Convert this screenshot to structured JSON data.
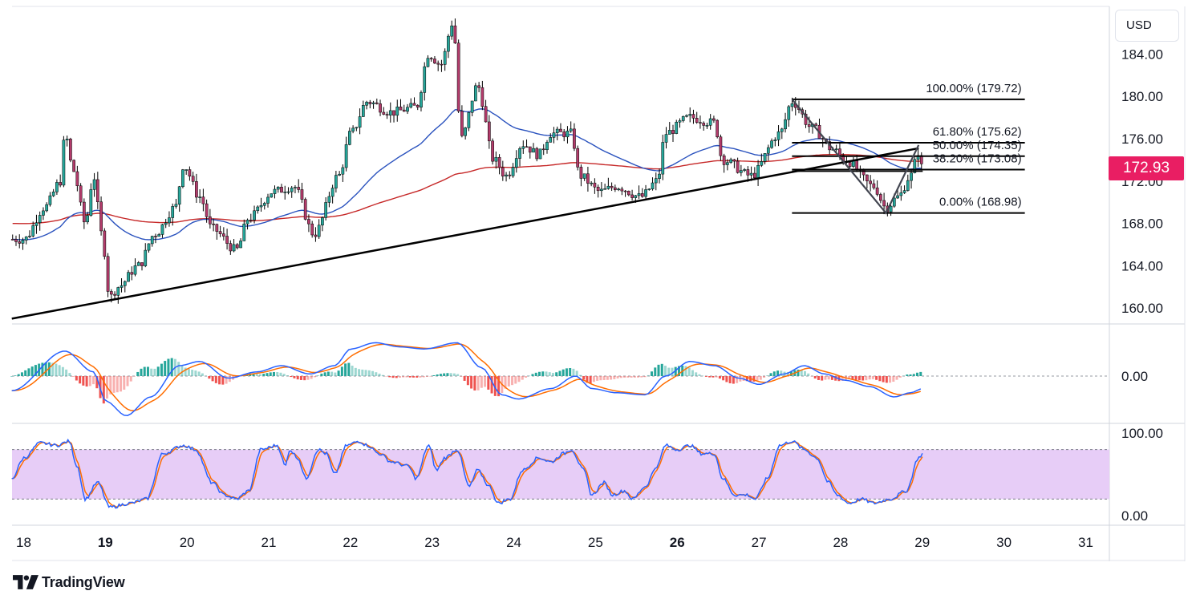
{
  "currency_label": "USD",
  "last_price_badge": "172.93",
  "branding": "TradingView",
  "colors": {
    "up": "#26a69a",
    "down": "#b33b6b",
    "ma_fast": "#2a52be",
    "ma_slow": "#c62828",
    "trendline": "#000000",
    "macd": "#2962ff",
    "signal": "#ff6d00",
    "hist_pos": "#26a69a",
    "hist_neg": "#ef5350",
    "stoch_fill": "#e7cdf7",
    "badge": "#e91e63"
  },
  "chart_data": [
    {
      "type": "candlestick",
      "y_ticks": [
        "184.00",
        "180.00",
        "176.00",
        "172.00",
        "168.00",
        "164.00",
        "160.00"
      ],
      "ylim": [
        158.5,
        188.5
      ],
      "x_ticks": [
        "18",
        "19",
        "20",
        "21",
        "22",
        "23",
        "24",
        "25",
        "26",
        "27",
        "28",
        "29",
        "30",
        "31"
      ],
      "bold_x_ticks": [
        "19",
        "26"
      ],
      "xlim": [
        17.85,
        32.25
      ],
      "ohlc_anchors": [
        [
          18.0,
          166.5
        ],
        [
          18.25,
          169.5
        ],
        [
          18.45,
          172.0
        ],
        [
          18.5,
          176.5
        ],
        [
          18.6,
          173.0
        ],
        [
          18.75,
          168.0
        ],
        [
          18.85,
          172.5
        ],
        [
          18.95,
          167.0
        ],
        [
          19.05,
          161.0
        ],
        [
          19.15,
          162.0
        ],
        [
          19.4,
          164.0
        ],
        [
          19.6,
          167.0
        ],
        [
          19.85,
          169.5
        ],
        [
          19.95,
          173.5
        ],
        [
          20.15,
          170.5
        ],
        [
          20.3,
          167.5
        ],
        [
          20.6,
          165.5
        ],
        [
          20.75,
          168.5
        ],
        [
          21.05,
          171.0
        ],
        [
          21.3,
          171.5
        ],
        [
          21.55,
          167.0
        ],
        [
          21.85,
          172.5
        ],
        [
          22.0,
          176.5
        ],
        [
          22.2,
          179.5
        ],
        [
          22.5,
          178.5
        ],
        [
          22.8,
          179.0
        ],
        [
          22.95,
          184.0
        ],
        [
          23.1,
          183.0
        ],
        [
          23.25,
          187.0
        ],
        [
          23.35,
          176.0
        ],
        [
          23.55,
          181.0
        ],
        [
          23.75,
          174.0
        ],
        [
          23.9,
          172.5
        ],
        [
          24.1,
          175.5
        ],
        [
          24.3,
          174.5
        ],
        [
          24.45,
          176.5
        ],
        [
          24.7,
          176.5
        ],
        [
          24.8,
          172.5
        ],
        [
          25.05,
          171.0
        ],
        [
          25.25,
          171.5
        ],
        [
          25.55,
          170.5
        ],
        [
          25.75,
          172.0
        ],
        [
          25.85,
          176.5
        ],
        [
          26.15,
          178.0
        ],
        [
          26.45,
          177.5
        ],
        [
          26.55,
          174.0
        ],
        [
          26.9,
          172.5
        ],
        [
          27.25,
          176.5
        ],
        [
          27.4,
          179.5
        ],
        [
          27.65,
          177.0
        ],
        [
          27.9,
          175.0
        ],
        [
          28.05,
          174.0
        ],
        [
          28.4,
          171.5
        ],
        [
          28.55,
          169.5
        ],
        [
          28.7,
          170.5
        ],
        [
          28.85,
          172.5
        ],
        [
          28.95,
          174.8
        ],
        [
          29.0,
          172.93
        ]
      ],
      "trendline": {
        "from": [
          17.85,
          159.0
        ],
        "to": [
          28.95,
          175.1
        ]
      },
      "fib_zigzag": [
        [
          27.4,
          179.72
        ],
        [
          28.55,
          168.98
        ],
        [
          28.95,
          175.4
        ]
      ],
      "fib_levels": [
        {
          "label": "100.00% (179.72)",
          "price": 179.72
        },
        {
          "label": "61.80% (175.62)",
          "price": 175.62
        },
        {
          "label": "50.00% (174.35)",
          "price": 174.35
        },
        {
          "label": "38.20% (173.08)",
          "price": 173.08
        },
        {
          "label": "0.00% (168.98)",
          "price": 168.98
        }
      ],
      "fib_line_range": [
        27.4,
        30.25
      ],
      "extra_level": {
        "price": 172.93
      }
    },
    {
      "type": "line",
      "title": "",
      "y_ticks": [
        "0.00"
      ],
      "ylim": [
        -1.0,
        1.0
      ],
      "x_range": [
        17.85,
        29.0
      ],
      "macd_anchors": [
        [
          17.85,
          -0.35
        ],
        [
          18.5,
          0.6
        ],
        [
          18.85,
          0.1
        ],
        [
          19.0,
          -0.6
        ],
        [
          19.25,
          -0.95
        ],
        [
          19.55,
          -0.5
        ],
        [
          19.9,
          0.25
        ],
        [
          20.15,
          0.35
        ],
        [
          20.5,
          -0.05
        ],
        [
          20.85,
          0.1
        ],
        [
          21.15,
          0.25
        ],
        [
          21.5,
          0.05
        ],
        [
          21.8,
          0.25
        ],
        [
          22.0,
          0.65
        ],
        [
          22.3,
          0.8
        ],
        [
          22.6,
          0.7
        ],
        [
          22.9,
          0.65
        ],
        [
          23.3,
          0.8
        ],
        [
          23.6,
          0.2
        ],
        [
          23.85,
          -0.45
        ],
        [
          24.05,
          -0.55
        ],
        [
          24.45,
          -0.3
        ],
        [
          24.75,
          0.0
        ],
        [
          24.95,
          -0.3
        ],
        [
          25.25,
          -0.4
        ],
        [
          25.6,
          -0.45
        ],
        [
          25.85,
          0.0
        ],
        [
          26.15,
          0.35
        ],
        [
          26.45,
          0.25
        ],
        [
          26.75,
          -0.05
        ],
        [
          27.0,
          -0.2
        ],
        [
          27.3,
          0.05
        ],
        [
          27.55,
          0.25
        ],
        [
          27.8,
          0.05
        ],
        [
          28.05,
          -0.1
        ],
        [
          28.35,
          -0.25
        ],
        [
          28.65,
          -0.5
        ],
        [
          28.85,
          -0.4
        ],
        [
          29.0,
          -0.3
        ]
      ],
      "signal_smoothing": 0.28
    },
    {
      "type": "line",
      "title": "",
      "y_ticks": [
        "100.00",
        "0.00"
      ],
      "ylim": [
        0,
        100
      ],
      "band": [
        20,
        80
      ],
      "x_range": [
        17.85,
        29.0
      ],
      "stoch_anchors": [
        [
          17.85,
          45
        ],
        [
          18.0,
          70
        ],
        [
          18.2,
          88
        ],
        [
          18.4,
          85
        ],
        [
          18.55,
          90
        ],
        [
          18.65,
          60
        ],
        [
          18.75,
          20
        ],
        [
          18.9,
          40
        ],
        [
          19.05,
          10
        ],
        [
          19.3,
          15
        ],
        [
          19.5,
          20
        ],
        [
          19.7,
          75
        ],
        [
          19.95,
          85
        ],
        [
          20.1,
          80
        ],
        [
          20.3,
          40
        ],
        [
          20.45,
          25
        ],
        [
          20.6,
          20
        ],
        [
          20.75,
          30
        ],
        [
          20.9,
          80
        ],
        [
          21.1,
          85
        ],
        [
          21.2,
          60
        ],
        [
          21.25,
          80
        ],
        [
          21.35,
          70
        ],
        [
          21.45,
          45
        ],
        [
          21.6,
          80
        ],
        [
          21.7,
          75
        ],
        [
          21.8,
          50
        ],
        [
          21.95,
          85
        ],
        [
          22.1,
          90
        ],
        [
          22.2,
          85
        ],
        [
          22.35,
          75
        ],
        [
          22.5,
          65
        ],
        [
          22.7,
          60
        ],
        [
          22.8,
          45
        ],
        [
          22.95,
          85
        ],
        [
          23.05,
          55
        ],
        [
          23.15,
          70
        ],
        [
          23.3,
          80
        ],
        [
          23.45,
          35
        ],
        [
          23.55,
          55
        ],
        [
          23.7,
          35
        ],
        [
          23.8,
          15
        ],
        [
          23.95,
          20
        ],
        [
          24.1,
          55
        ],
        [
          24.3,
          70
        ],
        [
          24.45,
          65
        ],
        [
          24.6,
          75
        ],
        [
          24.7,
          80
        ],
        [
          24.85,
          55
        ],
        [
          24.95,
          25
        ],
        [
          25.1,
          40
        ],
        [
          25.2,
          25
        ],
        [
          25.35,
          30
        ],
        [
          25.45,
          20
        ],
        [
          25.6,
          35
        ],
        [
          25.75,
          60
        ],
        [
          25.85,
          85
        ],
        [
          26.0,
          80
        ],
        [
          26.15,
          85
        ],
        [
          26.3,
          75
        ],
        [
          26.45,
          75
        ],
        [
          26.55,
          45
        ],
        [
          26.7,
          25
        ],
        [
          26.85,
          25
        ],
        [
          26.95,
          20
        ],
        [
          27.1,
          45
        ],
        [
          27.25,
          85
        ],
        [
          27.4,
          90
        ],
        [
          27.55,
          80
        ],
        [
          27.7,
          70
        ],
        [
          27.85,
          40
        ],
        [
          27.95,
          25
        ],
        [
          28.1,
          15
        ],
        [
          28.25,
          20
        ],
        [
          28.4,
          15
        ],
        [
          28.6,
          20
        ],
        [
          28.8,
          30
        ],
        [
          28.95,
          70
        ],
        [
          29.0,
          75
        ]
      ],
      "signal_smoothing": 0.45
    }
  ]
}
